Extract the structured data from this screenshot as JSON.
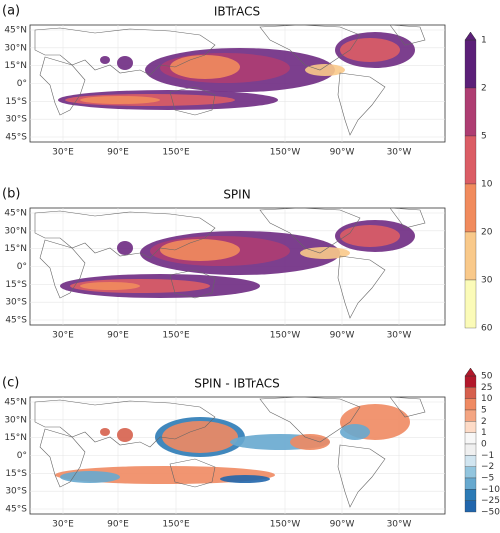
{
  "panels": [
    {
      "label": "(a)",
      "title": "IBTrACS"
    },
    {
      "label": "(b)",
      "title": "SPIN"
    },
    {
      "label": "(c)",
      "title": "SPIN - IBTrACS"
    }
  ],
  "lat_ticks": [
    "45°N",
    "30°N",
    "15°N",
    "0°",
    "15°S",
    "30°S",
    "45°S"
  ],
  "lon_ticks": [
    "30°E",
    "90°E",
    "150°E",
    "150°W",
    "90°W",
    "30°W"
  ],
  "colorbar_top": {
    "ticks": [
      "1",
      "2",
      "5",
      "10",
      "20",
      "30",
      "60"
    ]
  },
  "colorbar_bottom": {
    "ticks": [
      "50",
      "25",
      "10",
      "5",
      "2",
      "1",
      "0",
      "−1",
      "−2",
      "−5",
      "−10",
      "−25",
      "−50"
    ]
  }
}
